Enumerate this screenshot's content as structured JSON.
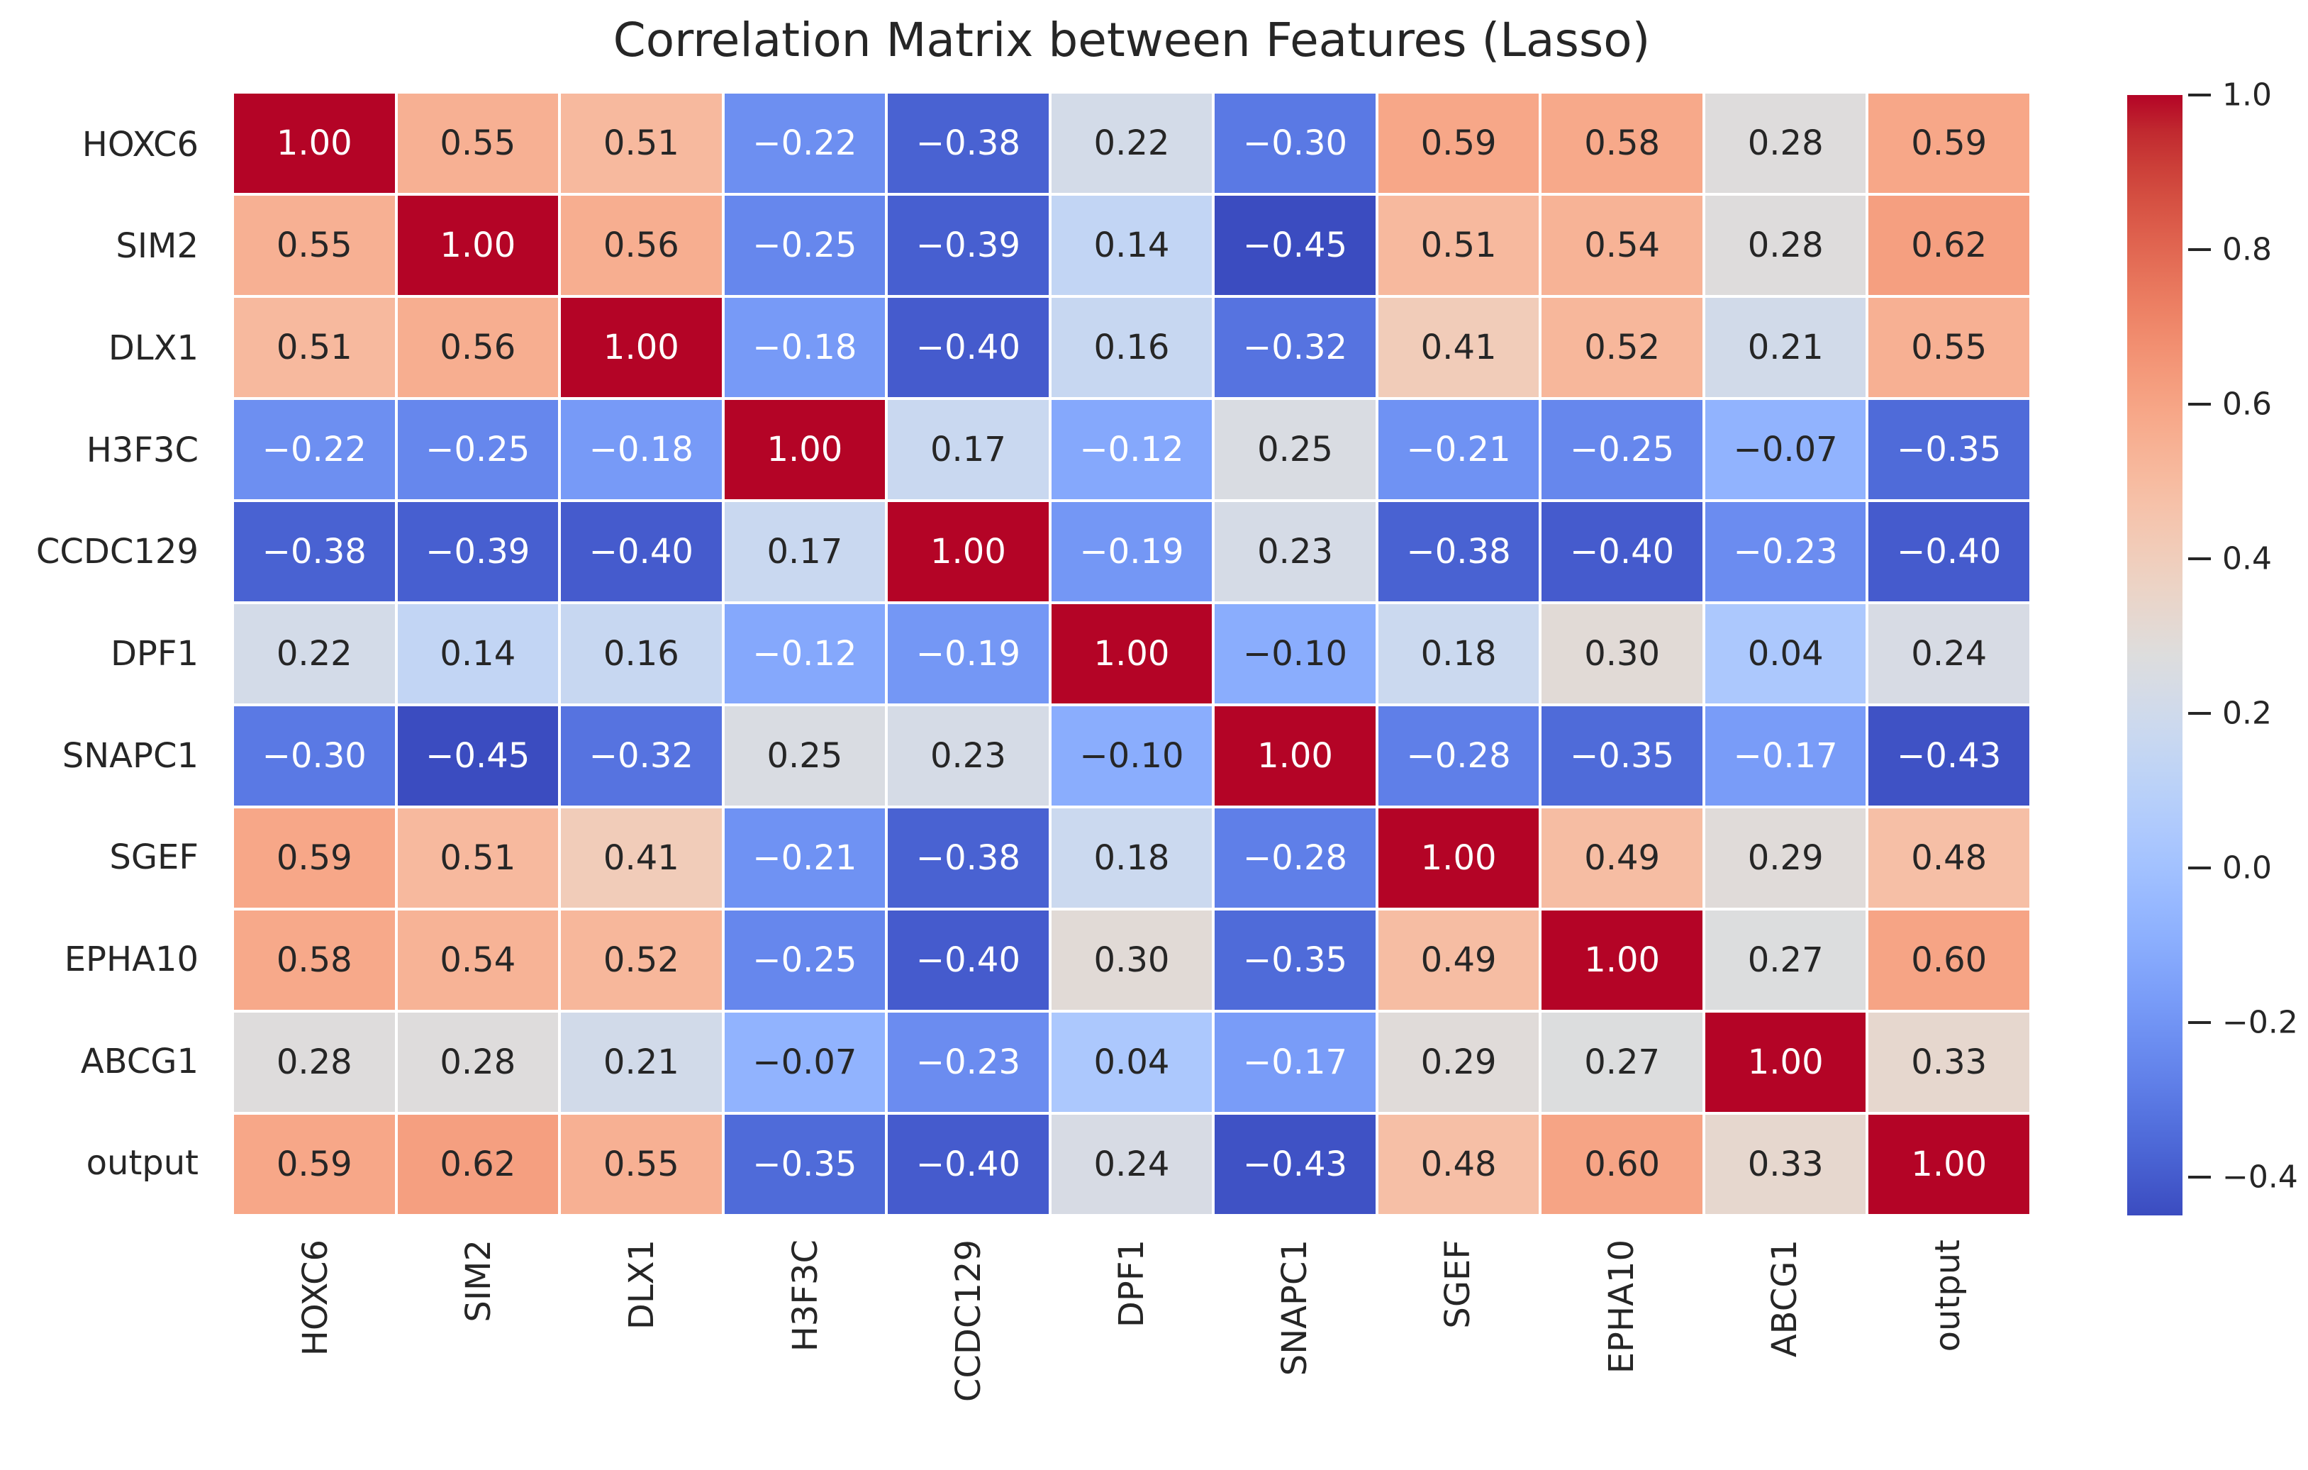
{
  "title": "Correlation Matrix between Features (Lasso)",
  "chart_data": {
    "type": "heatmap",
    "title": "Correlation Matrix between Features (Lasso)",
    "categories": [
      "HOXC6",
      "SIM2",
      "DLX1",
      "H3F3C",
      "CCDC129",
      "DPF1",
      "SNAPC1",
      "SGEF",
      "EPHA10",
      "ABCG1",
      "output"
    ],
    "matrix": [
      [
        1.0,
        0.55,
        0.51,
        -0.22,
        -0.38,
        0.22,
        -0.3,
        0.59,
        0.58,
        0.28,
        0.59
      ],
      [
        0.55,
        1.0,
        0.56,
        -0.25,
        -0.39,
        0.14,
        -0.45,
        0.51,
        0.54,
        0.28,
        0.62
      ],
      [
        0.51,
        0.56,
        1.0,
        -0.18,
        -0.4,
        0.16,
        -0.32,
        0.41,
        0.52,
        0.21,
        0.55
      ],
      [
        -0.22,
        -0.25,
        -0.18,
        1.0,
        0.17,
        -0.12,
        0.25,
        -0.21,
        -0.25,
        -0.07,
        -0.35
      ],
      [
        -0.38,
        -0.39,
        -0.4,
        0.17,
        1.0,
        -0.19,
        0.23,
        -0.38,
        -0.4,
        -0.23,
        -0.4
      ],
      [
        0.22,
        0.14,
        0.16,
        -0.12,
        -0.19,
        1.0,
        -0.1,
        0.18,
        0.3,
        0.04,
        0.24
      ],
      [
        -0.3,
        -0.45,
        -0.32,
        0.25,
        0.23,
        -0.1,
        1.0,
        -0.28,
        -0.35,
        -0.17,
        -0.43
      ],
      [
        0.59,
        0.51,
        0.41,
        -0.21,
        -0.38,
        0.18,
        -0.28,
        1.0,
        0.49,
        0.29,
        0.48
      ],
      [
        0.58,
        0.54,
        0.52,
        -0.25,
        -0.4,
        0.3,
        -0.35,
        0.49,
        1.0,
        0.27,
        0.6
      ],
      [
        0.28,
        0.28,
        0.21,
        -0.07,
        -0.23,
        0.04,
        -0.17,
        0.29,
        0.27,
        1.0,
        0.33
      ],
      [
        0.59,
        0.62,
        0.55,
        -0.35,
        -0.4,
        0.24,
        -0.43,
        0.48,
        0.6,
        0.33,
        1.0
      ]
    ],
    "annotation_decimals": 2,
    "vmin": -0.45,
    "vmax": 1.0,
    "grid_line_color": "#ffffff",
    "legend_position": "right-colorbar",
    "colorbar_ticks": [
      1.0,
      0.8,
      0.6,
      0.4,
      0.2,
      0.0,
      -0.2,
      -0.4
    ],
    "colorbar_tick_decimals": 1,
    "colormap": {
      "name": "coolwarm",
      "stops": [
        "#3b4cc0",
        "#445acc",
        "#4d68d7",
        "#5775e1",
        "#6282ea",
        "#6c8ef1",
        "#779af7",
        "#82a5fb",
        "#8db0fe",
        "#98b9ff",
        "#a3c2ff",
        "#aec9fd",
        "#b8d0f9",
        "#c2d5f4",
        "#ccd9ee",
        "#d5dbe6",
        "#dddddd",
        "#e5d8d1",
        "#ecd3c5",
        "#f1ccb9",
        "#f5c4ad",
        "#f7bba0",
        "#f7b194",
        "#f7a687",
        "#f49a7b",
        "#f18d6f",
        "#ec7f63",
        "#e57058",
        "#de604d",
        "#d55042",
        "#cb3e38",
        "#c0282f",
        "#b40426"
      ]
    },
    "annotation_text_colors": {
      "on_dark_cell": "#ffffff",
      "on_light_cell": "#262626",
      "luminance_threshold": 0.408
    }
  }
}
